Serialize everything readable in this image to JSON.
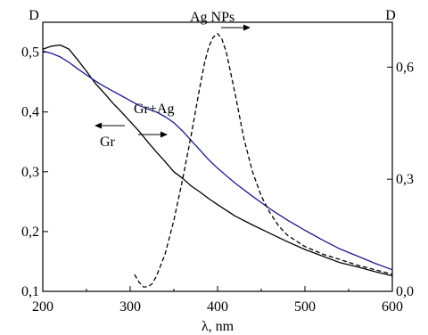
{
  "colors": {
    "background": "#ffffff",
    "axis": "#000000",
    "gr": "#000000",
    "gr_ag": "#1a1a8c",
    "ag_nps": "#000000"
  },
  "chart_data": {
    "type": "line",
    "xlabel": "λ, nm",
    "ylabel_left": "D",
    "ylabel_right": "D",
    "xlim": [
      200,
      600
    ],
    "ylim_left": [
      0.1,
      0.55
    ],
    "ylim_right": [
      0.0,
      0.72
    ],
    "x_ticks": [
      "200",
      "300",
      "400",
      "500",
      "600"
    ],
    "y_ticks_left": [
      "0,1",
      "0,2",
      "0,3",
      "0,4",
      "0,5"
    ],
    "y_ticks_right": [
      "0,0",
      "0,3",
      "0,6"
    ],
    "grid": false,
    "annotations": {
      "ag_nps": "Ag NPs",
      "gr_ag": "Gr+Ag",
      "gr": "Gr"
    },
    "series": [
      {
        "name": "Gr",
        "axis": "left",
        "style": "solid",
        "x": [
          200,
          210,
          220,
          230,
          240,
          250,
          260,
          270,
          280,
          290,
          300,
          310,
          320,
          330,
          340,
          350,
          360,
          370,
          380,
          390,
          400,
          420,
          440,
          460,
          480,
          500,
          520,
          540,
          560,
          580,
          600
        ],
        "y": [
          0.505,
          0.51,
          0.512,
          0.505,
          0.487,
          0.468,
          0.448,
          0.432,
          0.415,
          0.4,
          0.384,
          0.368,
          0.35,
          0.333,
          0.317,
          0.3,
          0.289,
          0.276,
          0.266,
          0.255,
          0.245,
          0.226,
          0.211,
          0.197,
          0.183,
          0.17,
          0.159,
          0.148,
          0.141,
          0.133,
          0.126
        ]
      },
      {
        "name": "Gr+Ag",
        "axis": "left",
        "style": "solid",
        "x": [
          200,
          210,
          220,
          230,
          240,
          250,
          260,
          270,
          280,
          290,
          300,
          310,
          320,
          330,
          340,
          350,
          360,
          370,
          380,
          390,
          400,
          420,
          440,
          460,
          480,
          500,
          520,
          540,
          560,
          580,
          600
        ],
        "y": [
          0.502,
          0.498,
          0.492,
          0.483,
          0.472,
          0.462,
          0.452,
          0.443,
          0.435,
          0.427,
          0.419,
          0.411,
          0.405,
          0.4,
          0.392,
          0.382,
          0.368,
          0.352,
          0.336,
          0.32,
          0.306,
          0.281,
          0.259,
          0.238,
          0.219,
          0.202,
          0.186,
          0.171,
          0.159,
          0.147,
          0.136
        ]
      },
      {
        "name": "Ag NPs",
        "axis": "right",
        "style": "dashed",
        "x": [
          305,
          310,
          315,
          320,
          325,
          330,
          340,
          350,
          360,
          370,
          380,
          385,
          390,
          395,
          400,
          405,
          410,
          420,
          430,
          440,
          450,
          460,
          470,
          480,
          500,
          520,
          540,
          560,
          580,
          600
        ],
        "y": [
          0.045,
          0.025,
          0.012,
          0.012,
          0.02,
          0.04,
          0.1,
          0.19,
          0.3,
          0.42,
          0.55,
          0.61,
          0.655,
          0.68,
          0.69,
          0.675,
          0.64,
          0.53,
          0.41,
          0.32,
          0.255,
          0.21,
          0.175,
          0.15,
          0.12,
          0.1,
          0.085,
          0.07,
          0.058,
          0.046
        ]
      }
    ]
  }
}
